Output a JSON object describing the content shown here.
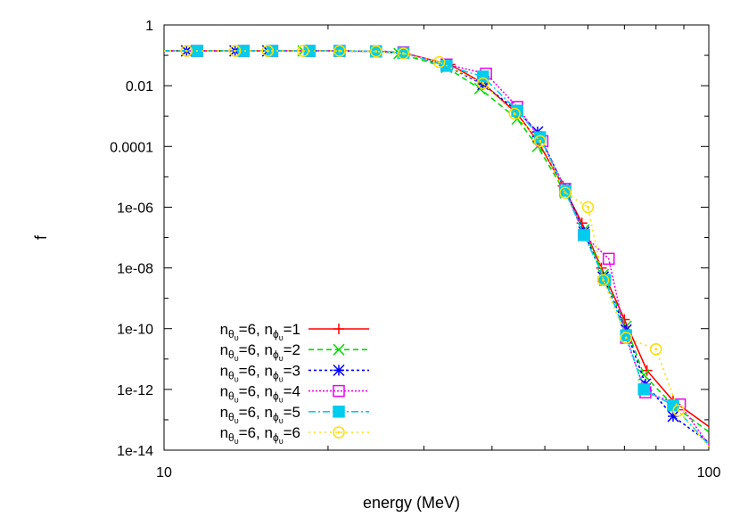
{
  "chart_data": {
    "type": "line",
    "title": "",
    "xlabel": "energy (MeV)",
    "ylabel": "f",
    "x_scale": "log",
    "y_scale": "log",
    "xlim": [
      10,
      100
    ],
    "ylim": [
      1e-14,
      1
    ],
    "x_ticks": [
      {
        "value": 10,
        "label": "10"
      },
      {
        "value": 100,
        "label": "100"
      }
    ],
    "y_ticks": [
      {
        "value": 1,
        "label": "1"
      },
      {
        "value": 0.01,
        "label": "0.01"
      },
      {
        "value": 0.0001,
        "label": "0.0001"
      },
      {
        "value": 1e-06,
        "label": "1e-06"
      },
      {
        "value": 1e-08,
        "label": "1e-08"
      },
      {
        "value": 1e-10,
        "label": "1e-10"
      },
      {
        "value": 1e-12,
        "label": "1e-12"
      },
      {
        "value": 1e-14,
        "label": "1e-14"
      }
    ],
    "grid": false,
    "legend_position": "bottom-left",
    "series": [
      {
        "legend": {
          "prefix": "n",
          "sub1": "θ",
          "subsub1": "υ",
          "mid": "=6, n",
          "sub2": "ϕ",
          "subsub2": "υ",
          "suffix": "=1"
        },
        "color": "#ff0000",
        "marker": "plus",
        "dash": "",
        "x": [
          10.0,
          11.5,
          14.0,
          15.8,
          18.5,
          21.0,
          25.0,
          27.5,
          33.5,
          38.5,
          44.5,
          48.5,
          54.0,
          58.5,
          63.5,
          70.0,
          77.0,
          86.0,
          100.0
        ],
        "y": [
          0.14,
          0.14,
          0.14,
          0.14,
          0.14,
          0.14,
          0.135,
          0.12,
          0.05,
          0.012,
          0.0012,
          0.00015,
          5e-06,
          3e-07,
          1e-08,
          2e-10,
          4.2e-12,
          4.2e-13,
          6e-14
        ]
      },
      {
        "legend": {
          "prefix": "n",
          "sub1": "θ",
          "subsub1": "υ",
          "mid": "=6, n",
          "sub2": "ϕ",
          "subsub2": "υ",
          "suffix": "=2"
        },
        "color": "#00dd00",
        "marker": "x",
        "dash": "6,4",
        "x": [
          10.0,
          11.0,
          13.5,
          15.5,
          18.0,
          21.0,
          24.5,
          27.0,
          33.0,
          38.0,
          44.5,
          48.5,
          54.5,
          59.0,
          64.0,
          70.5,
          76.0,
          86.0,
          100.0
        ],
        "y": [
          0.14,
          0.14,
          0.14,
          0.14,
          0.14,
          0.14,
          0.135,
          0.115,
          0.04,
          0.008,
          0.0008,
          0.0001,
          3e-06,
          1.8e-07,
          6e-09,
          1.2e-10,
          3e-12,
          3e-13,
          4e-14
        ]
      },
      {
        "legend": {
          "prefix": "n",
          "sub1": "θ",
          "subsub1": "υ",
          "mid": "=6, n",
          "sub2": "ϕ",
          "subsub2": "υ",
          "suffix": "=3"
        },
        "color": "#0000ff",
        "marker": "star",
        "dash": "3,3",
        "x": [
          10.0,
          11.0,
          13.5,
          15.5,
          18.5,
          21.0,
          24.5,
          27.5,
          33.0,
          38.5,
          44.5,
          48.5,
          54.5,
          59.0,
          64.0,
          70.5,
          76.5,
          86.0,
          100.0
        ],
        "y": [
          0.14,
          0.14,
          0.14,
          0.14,
          0.14,
          0.14,
          0.135,
          0.12,
          0.045,
          0.011,
          0.0015,
          0.0003,
          4e-06,
          1.5e-07,
          5e-09,
          9e-11,
          1.5e-12,
          1.3e-13,
          1.8e-14
        ]
      },
      {
        "legend": {
          "prefix": "n",
          "sub1": "θ",
          "subsub1": "υ",
          "mid": "=6, n",
          "sub2": "ϕ",
          "subsub2": "υ",
          "suffix": "=4"
        },
        "color": "#ee00ee",
        "marker": "square",
        "dash": "2,2",
        "x": [
          10.0,
          11.5,
          14.0,
          15.8,
          18.5,
          21.0,
          24.5,
          27.5,
          33.0,
          39.0,
          44.5,
          49.5,
          54.5,
          59.0,
          65.5,
          70.5,
          76.5,
          88.5,
          100.0
        ],
        "y": [
          0.14,
          0.14,
          0.14,
          0.14,
          0.14,
          0.14,
          0.135,
          0.125,
          0.05,
          0.025,
          0.002,
          0.00015,
          4e-06,
          1.2e-07,
          2e-08,
          5e-11,
          8e-13,
          3.2e-13,
          1.5e-14
        ]
      },
      {
        "legend": {
          "prefix": "n",
          "sub1": "θ",
          "subsub1": "υ",
          "mid": "=6, n",
          "sub2": "ϕ",
          "subsub2": "υ",
          "suffix": "=5"
        },
        "color": "#00ccee",
        "marker": "filled-square",
        "dash": "8,3,2,3",
        "x": [
          10.0,
          11.5,
          14.0,
          15.8,
          18.5,
          21.0,
          24.5,
          27.5,
          33.0,
          38.5,
          44.5,
          49.0,
          54.5,
          59.0,
          64.5,
          70.5,
          76.0,
          86.0,
          100.0
        ],
        "y": [
          0.14,
          0.14,
          0.14,
          0.14,
          0.14,
          0.14,
          0.135,
          0.12,
          0.045,
          0.02,
          0.0015,
          0.0002,
          3.5e-06,
          1.2e-07,
          4e-09,
          6e-11,
          1e-12,
          3e-13,
          1.5e-14
        ]
      },
      {
        "legend": {
          "prefix": "n",
          "sub1": "θ",
          "subsub1": "υ",
          "mid": "=6, n",
          "sub2": "ϕ",
          "subsub2": "υ",
          "suffix": "=6"
        },
        "color": "#ffdd00",
        "marker": "circle",
        "dash": "2,4",
        "x": [
          10.0,
          11.0,
          13.5,
          15.5,
          18.0,
          21.0,
          24.5,
          27.5,
          32.0,
          38.5,
          44.0,
          49.0,
          54.5,
          60.0,
          64.0,
          70.5,
          80.0,
          88.0,
          100.0
        ],
        "y": [
          0.14,
          0.14,
          0.14,
          0.14,
          0.14,
          0.14,
          0.135,
          0.115,
          0.06,
          0.012,
          0.0012,
          0.00015,
          3e-06,
          1e-06,
          4e-09,
          5e-11,
          2.1e-11,
          2e-13,
          1.3e-14
        ]
      }
    ]
  }
}
